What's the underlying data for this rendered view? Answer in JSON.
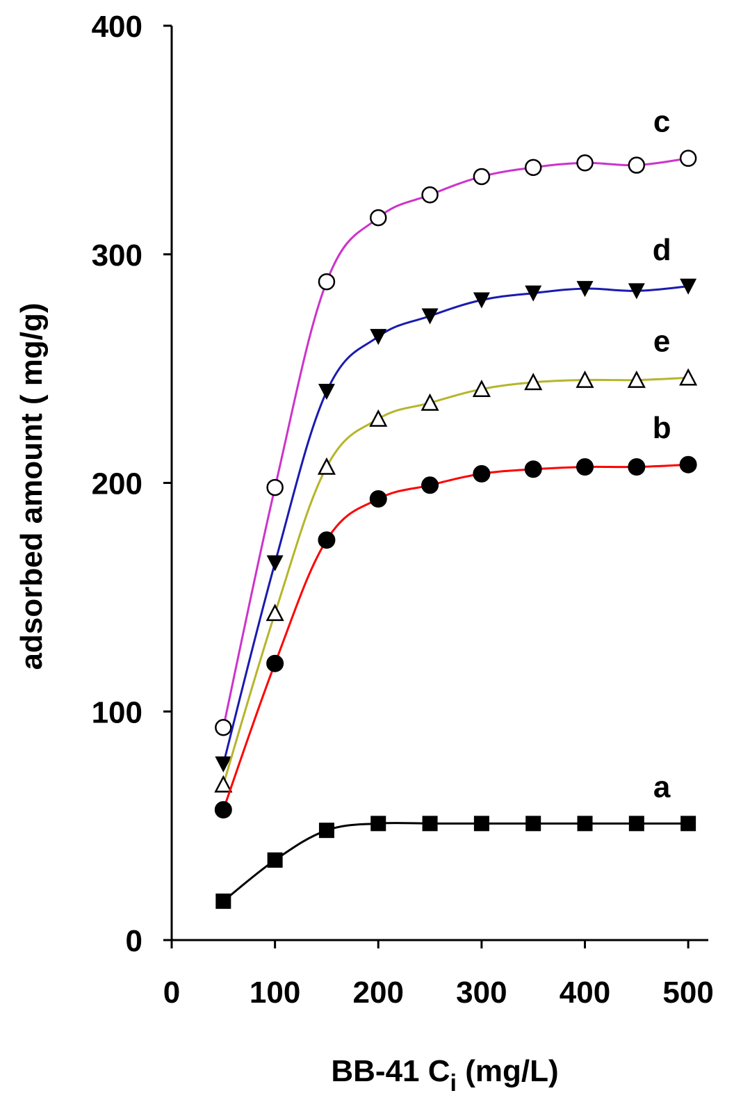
{
  "chart_data": {
    "type": "line",
    "title": "",
    "xlabel": "BB-41 C",
    "xlabel_subscript": "i",
    "xlabel_unit": " (mg/L)",
    "ylabel": "adsorbed amount ( mg/g)",
    "xlim": [
      0,
      510
    ],
    "ylim": [
      0,
      400
    ],
    "xticks": [
      0,
      100,
      200,
      300,
      400,
      500
    ],
    "yticks": [
      0,
      100,
      200,
      300,
      400
    ],
    "grid": false,
    "x": [
      50,
      100,
      150,
      200,
      250,
      300,
      350,
      400,
      450,
      500
    ],
    "series": [
      {
        "name": "c",
        "color": "#cc33cc",
        "marker": "open-circle",
        "values": [
          93,
          198,
          288,
          316,
          326,
          334,
          338,
          340,
          339,
          342
        ]
      },
      {
        "name": "d",
        "color": "#1a1ab0",
        "marker": "filled-triangle-down",
        "values": [
          77,
          165,
          240,
          264,
          273,
          280,
          283,
          285,
          284,
          286
        ]
      },
      {
        "name": "e",
        "color": "#b5b52a",
        "marker": "open-triangle-up",
        "values": [
          68,
          143,
          207,
          228,
          235,
          241,
          244,
          245,
          245,
          246
        ]
      },
      {
        "name": "b",
        "color": "#ff0000",
        "marker": "filled-circle",
        "values": [
          57,
          121,
          175,
          193,
          199,
          204,
          206,
          207,
          207,
          208
        ]
      },
      {
        "name": "a",
        "color": "#000000",
        "marker": "filled-square",
        "values": [
          17,
          35,
          48,
          51,
          51,
          51,
          51,
          51,
          51,
          51
        ]
      }
    ]
  }
}
